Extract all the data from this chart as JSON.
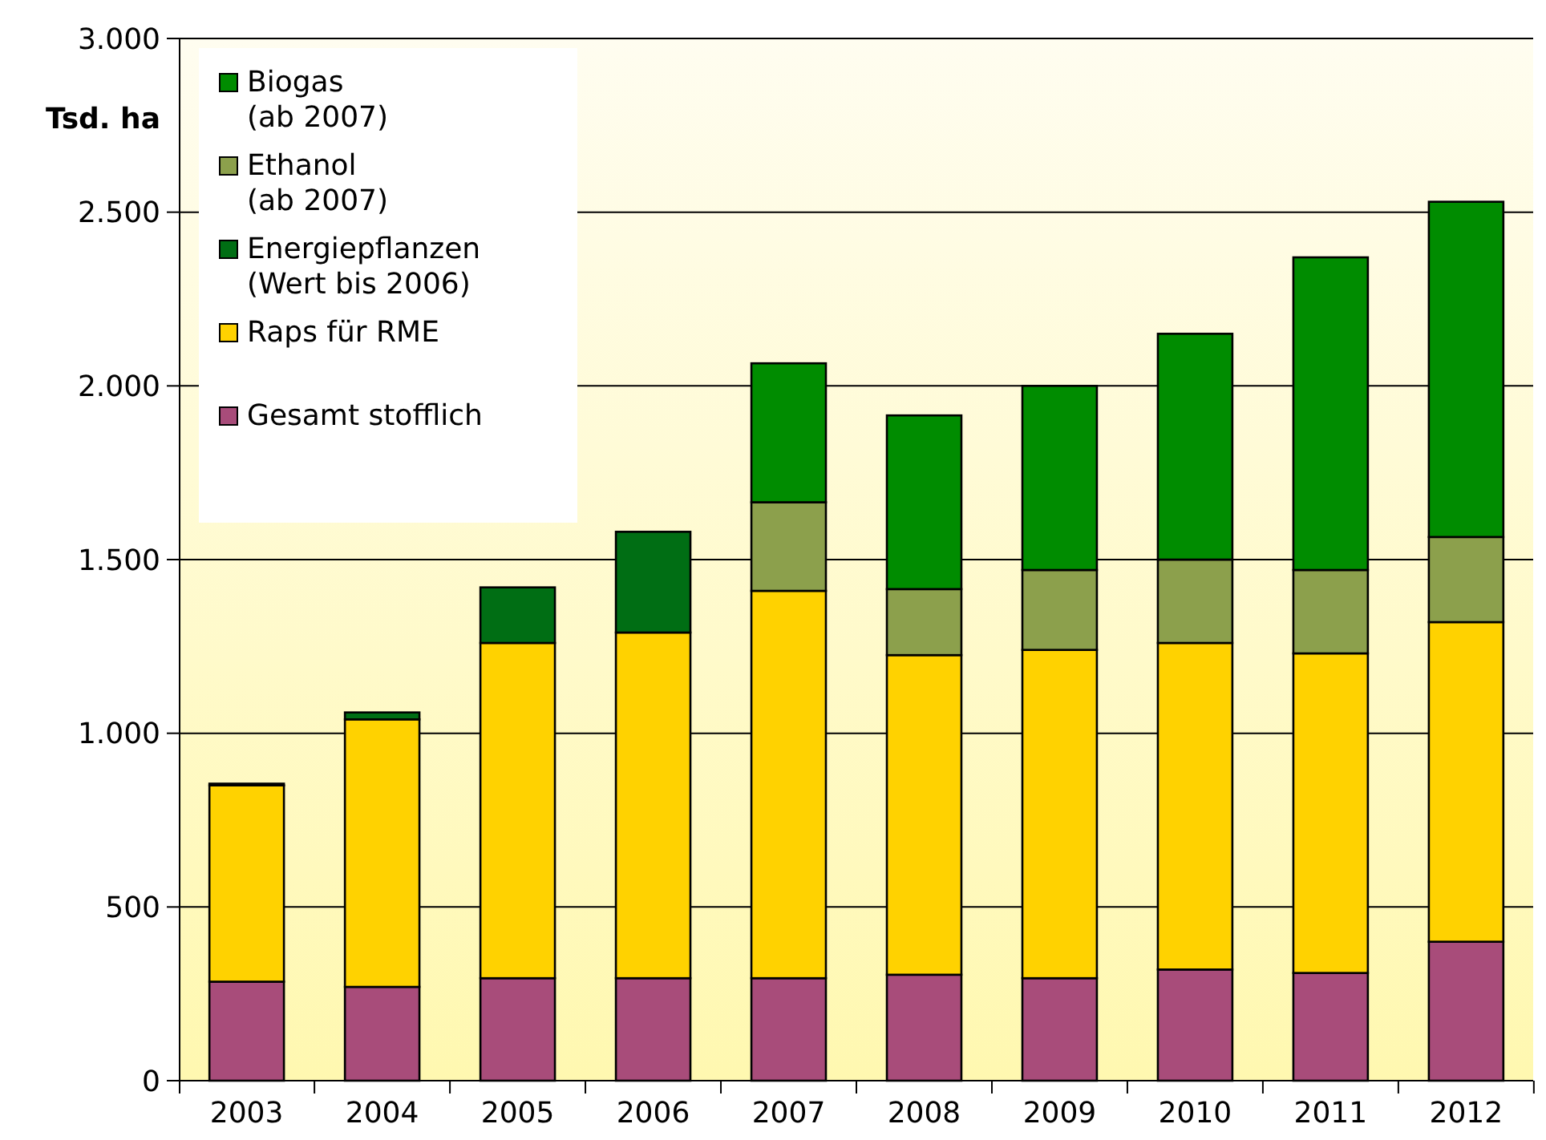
{
  "chart_data": {
    "type": "bar",
    "stacked": true,
    "ylabel": "Tsd. ha",
    "categories": [
      "2003",
      "2004",
      "2005",
      "2006",
      "2007",
      "2008",
      "2009",
      "2010",
      "2011",
      "2012"
    ],
    "series": [
      {
        "name": "Gesamt stofflich",
        "color": "#a84c7a",
        "values": [
          285,
          270,
          295,
          295,
          295,
          305,
          295,
          320,
          310,
          400
        ]
      },
      {
        "name": "Raps für RME",
        "color": "#ffd200",
        "values": [
          565,
          770,
          965,
          995,
          1115,
          920,
          945,
          940,
          920,
          920
        ]
      },
      {
        "name": "Energiepflanzen (Wert bis 2006)",
        "color": "#006e14",
        "values": [
          5,
          20,
          160,
          290,
          null,
          null,
          null,
          null,
          null,
          null
        ]
      },
      {
        "name": "Ethanol (ab 2007)",
        "color": "#8ca04c",
        "values": [
          null,
          null,
          null,
          null,
          255,
          190,
          230,
          240,
          240,
          245
        ]
      },
      {
        "name": "Biogas (ab 2007)",
        "color": "#008c00",
        "values": [
          null,
          null,
          null,
          null,
          400,
          500,
          530,
          650,
          900,
          965
        ]
      }
    ],
    "ylim": [
      0,
      3000
    ],
    "yticks": [
      {
        "value": 0,
        "label": "0"
      },
      {
        "value": 500,
        "label": "500"
      },
      {
        "value": 1000,
        "label": "1.000"
      },
      {
        "value": 1500,
        "label": "1.500"
      },
      {
        "value": 2000,
        "label": "2.000"
      },
      {
        "value": 2500,
        "label": "2.500"
      },
      {
        "value": 3000,
        "label": "3.000"
      }
    ],
    "grid": "y",
    "legend": "top left"
  }
}
